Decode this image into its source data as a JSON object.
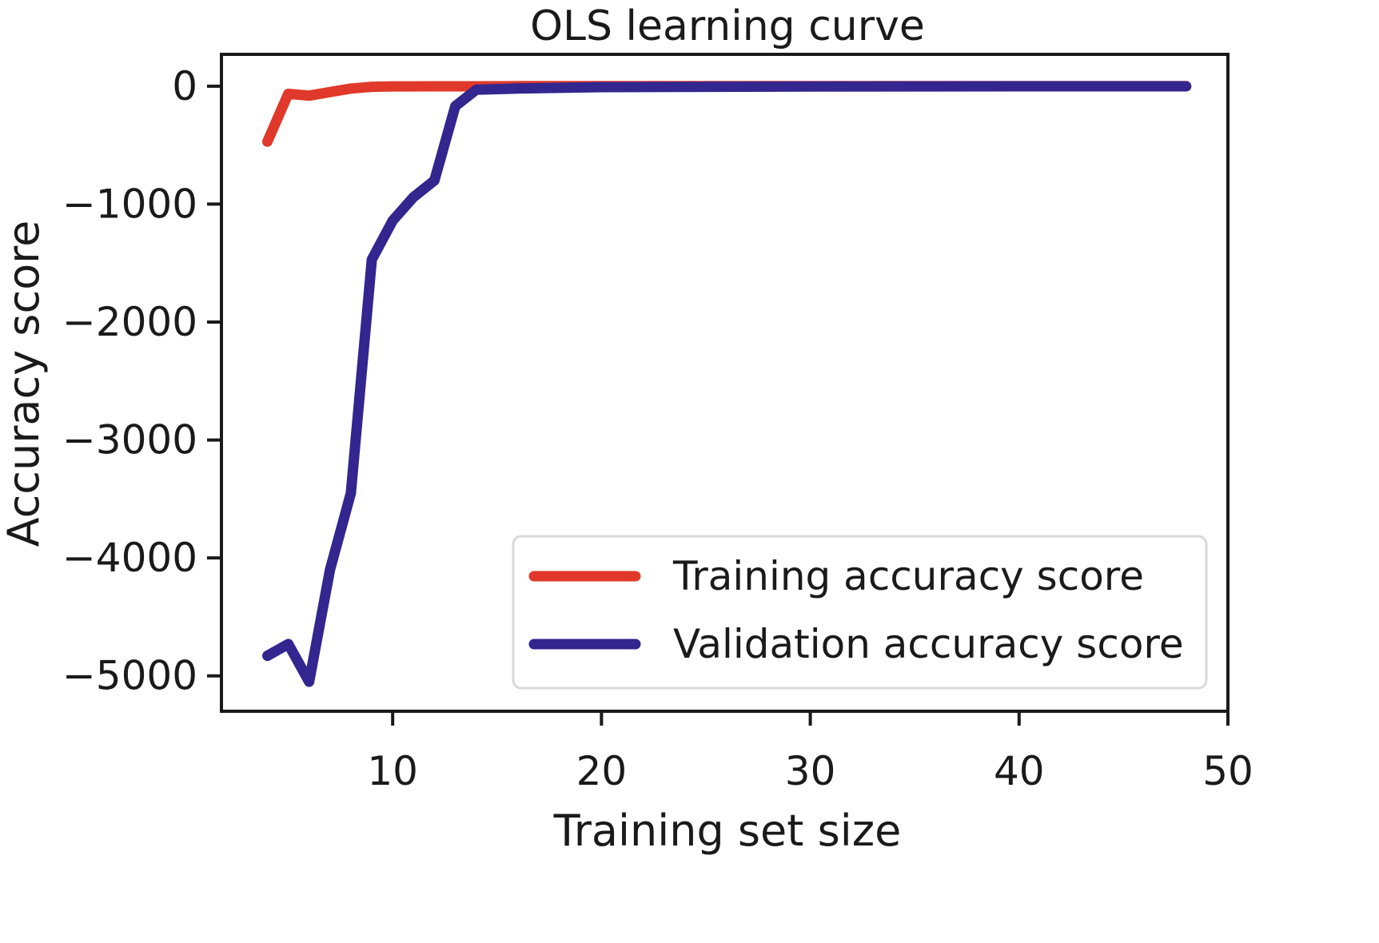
{
  "chart_data": {
    "type": "line",
    "title": "OLS learning curve",
    "xlabel": "Training set size",
    "ylabel": "Accuracy score",
    "xlim": [
      1.8,
      50
    ],
    "ylim": [
      -5300,
      270
    ],
    "xticks": [
      10,
      20,
      30,
      40,
      50
    ],
    "yticks": [
      0,
      -1000,
      -2000,
      -3000,
      -4000,
      -5000
    ],
    "xtick_labels": [
      "10",
      "20",
      "30",
      "40",
      "50"
    ],
    "ytick_labels": [
      "0",
      "−1000",
      "−2000",
      "−3000",
      "−4000",
      "−5000"
    ],
    "grid": false,
    "legend_position": "bottom-right",
    "series": [
      {
        "name": "Training accuracy score",
        "color": "#e0392b",
        "x": [
          4,
          5,
          6,
          7,
          8,
          9,
          10,
          12,
          14,
          16,
          18,
          20,
          25,
          30,
          35,
          40,
          45,
          48
        ],
        "y": [
          -470,
          -65,
          -80,
          -50,
          -20,
          -5,
          -2,
          -1,
          -1,
          0,
          0,
          0,
          0,
          0,
          0,
          0,
          0,
          0
        ]
      },
      {
        "name": "Validation accuracy score",
        "color": "#33268f",
        "x": [
          4,
          5,
          6,
          7,
          8,
          9,
          10,
          11,
          12,
          13,
          14,
          16,
          20,
          25,
          30,
          35,
          40,
          45,
          48
        ],
        "y": [
          -4830,
          -4730,
          -5050,
          -4100,
          -3450,
          -1470,
          -1140,
          -940,
          -800,
          -170,
          -30,
          -20,
          -8,
          -5,
          -3,
          -2,
          -1,
          -1,
          -1
        ]
      }
    ]
  }
}
